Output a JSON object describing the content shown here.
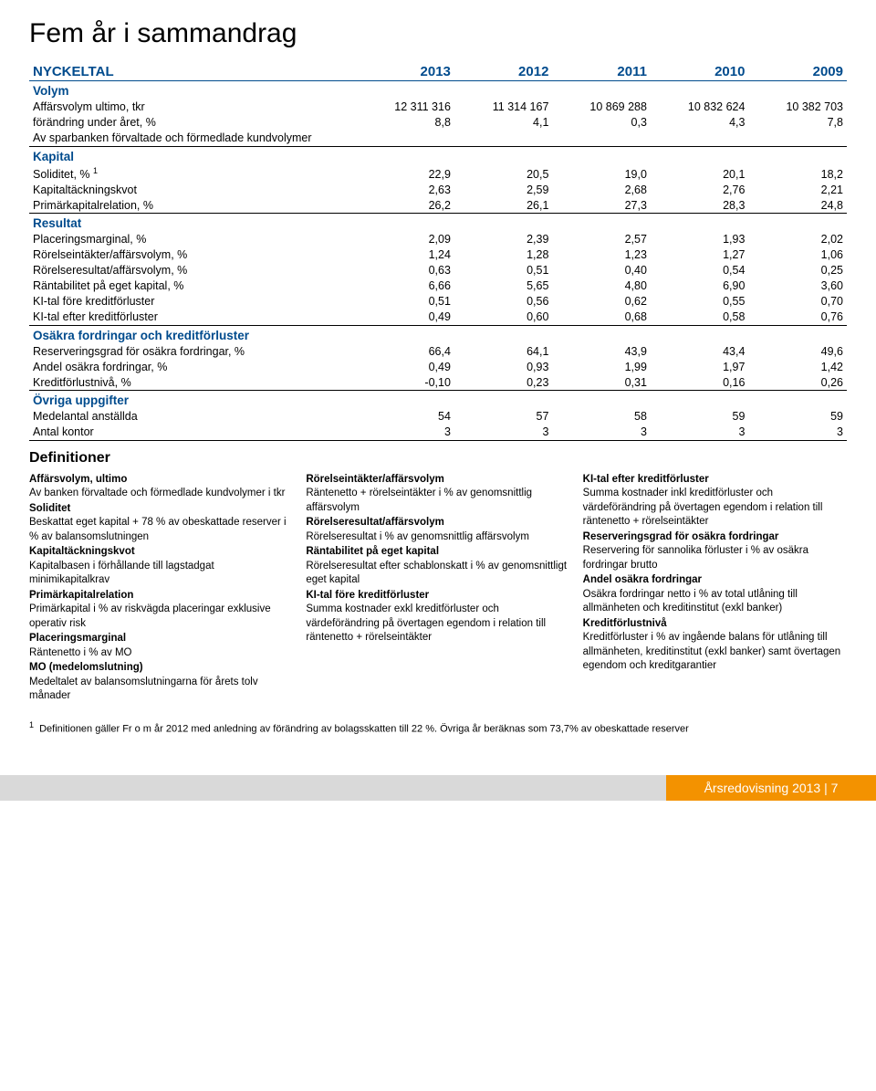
{
  "title": "Fem år i sammandrag",
  "years_header_label": "NYCKELTAL",
  "years": [
    "2013",
    "2012",
    "2011",
    "2010",
    "2009"
  ],
  "colors": {
    "heading_blue": "#004b8d",
    "footer_grey": "#d9d9d9",
    "footer_orange": "#f39200",
    "text": "#000000",
    "background": "#ffffff"
  },
  "sections": [
    {
      "heading": "Volym",
      "top_border": false,
      "rows": [
        {
          "label": "Affärsvolym ultimo, tkr",
          "values": [
            "12 311 316",
            "11 314 167",
            "10 869 288",
            "10 832 624",
            "10 382 703"
          ]
        },
        {
          "label": "   förändring under året, %",
          "values": [
            "8,8",
            "4,1",
            "0,3",
            "4,3",
            "7,8"
          ]
        },
        {
          "label": "Av sparbanken förvaltade och förmedlade kundvolymer",
          "values": [
            "",
            "",
            "",
            "",
            ""
          ],
          "bordered": true
        }
      ]
    },
    {
      "heading": "Kapital",
      "top_border": false,
      "rows": [
        {
          "label": "Soliditet, % ",
          "sup": "1",
          "values": [
            "22,9",
            "20,5",
            "19,0",
            "20,1",
            "18,2"
          ]
        },
        {
          "label": "Kapitaltäckningskvot",
          "values": [
            "2,63",
            "2,59",
            "2,68",
            "2,76",
            "2,21"
          ]
        },
        {
          "label": "Primärkapitalrelation, %",
          "values": [
            "26,2",
            "26,1",
            "27,3",
            "28,3",
            "24,8"
          ],
          "bordered": true
        }
      ]
    },
    {
      "heading": "Resultat",
      "top_border": false,
      "rows": [
        {
          "label": "Placeringsmarginal, %",
          "values": [
            "2,09",
            "2,39",
            "2,57",
            "1,93",
            "2,02"
          ]
        },
        {
          "label": "Rörelseintäkter/affärsvolym, %",
          "values": [
            "1,24",
            "1,28",
            "1,23",
            "1,27",
            "1,06"
          ]
        },
        {
          "label": "Rörelseresultat/affärsvolym, %",
          "values": [
            "0,63",
            "0,51",
            "0,40",
            "0,54",
            "0,25"
          ]
        },
        {
          "label": "Räntabilitet på eget kapital, %",
          "values": [
            "6,66",
            "5,65",
            "4,80",
            "6,90",
            "3,60"
          ]
        },
        {
          "label": "KI-tal före kreditförluster",
          "values": [
            "0,51",
            "0,56",
            "0,62",
            "0,55",
            "0,70"
          ]
        },
        {
          "label": "KI-tal efter kreditförluster",
          "values": [
            "0,49",
            "0,60",
            "0,68",
            "0,58",
            "0,76"
          ],
          "bordered": true
        }
      ]
    },
    {
      "heading": "Osäkra fordringar och kreditförluster",
      "top_border": false,
      "rows": [
        {
          "label": "Reserveringsgrad för osäkra fordringar, %",
          "values": [
            "66,4",
            "64,1",
            "43,9",
            "43,4",
            "49,6"
          ]
        },
        {
          "label": "Andel osäkra fordringar, %",
          "values": [
            "0,49",
            "0,93",
            "1,99",
            "1,97",
            "1,42"
          ]
        },
        {
          "label": "Kreditförlustnivå, %",
          "values": [
            "-0,10",
            "0,23",
            "0,31",
            "0,16",
            "0,26"
          ],
          "bordered": true
        }
      ]
    },
    {
      "heading": "Övriga uppgifter",
      "top_border": false,
      "rows": [
        {
          "label": "Medelantal anställda",
          "values": [
            "54",
            "57",
            "58",
            "59",
            "59"
          ]
        },
        {
          "label": "Antal kontor",
          "values": [
            "3",
            "3",
            "3",
            "3",
            "3"
          ],
          "bordered": true
        }
      ]
    }
  ],
  "definitions_title": "Definitioner",
  "definitions_columns": [
    [
      {
        "term": "Affärsvolym, ultimo",
        "desc": "Av banken förvaltade och förmedlade kundvolymer i tkr"
      },
      {
        "term": "Soliditet",
        "desc": "Beskattat eget kapital + 78 % av obeskattade reserver i % av balansomslutningen"
      },
      {
        "term": "Kapitaltäckningskvot",
        "desc": "Kapitalbasen i förhållande till lagstadgat minimikapitalkrav"
      },
      {
        "term": "Primärkapitalrelation",
        "desc": "Primärkapital i % av riskvägda placeringar exklusive operativ risk"
      },
      {
        "term": "Placeringsmarginal",
        "desc": "Räntenetto i % av MO"
      },
      {
        "term": "MO (medelomslutning)",
        "desc": "Medeltalet av balansomslutningarna för årets tolv månader"
      }
    ],
    [
      {
        "term": "Rörelseintäkter/affärsvolym",
        "desc": "Räntenetto + rörelseintäkter i % av genomsnittlig affärsvolym"
      },
      {
        "term": "Rörelseresultat/affärsvolym",
        "desc": "Rörelseresultat i % av genomsnittlig affärsvolym"
      },
      {
        "term": "Räntabilitet på eget kapital",
        "desc": "Rörelseresultat efter schablonskatt i % av genomsnittligt eget kapital"
      },
      {
        "term": "KI-tal före kreditförluster",
        "desc": "Summa kostnader exkl kreditförluster och värdeförändring på övertagen egendom i relation till räntenetto + rörelseintäkter"
      }
    ],
    [
      {
        "term": "KI-tal efter kreditförluster",
        "desc": "Summa kostnader inkl kreditförluster och värdeförändring på övertagen egendom i relation till räntenetto + rörelseintäkter"
      },
      {
        "term": "Reserveringsgrad för osäkra fordringar",
        "desc": "Reservering för sannolika förluster i % av osäkra fordringar brutto"
      },
      {
        "term": "Andel osäkra fordringar",
        "desc": "Osäkra fordringar netto i % av total utlåning till allmänheten och kreditinstitut (exkl banker)"
      },
      {
        "term": "Kreditförlustnivå",
        "desc": "Kreditförluster i % av ingående balans för utlåning till allmänheten, kreditinstitut (exkl banker) samt övertagen egendom och kreditgarantier"
      }
    ]
  ],
  "footnote_marker": "1",
  "footnote_text": "Definitionen gäller Fr o m år 2012 med anledning av förändring av bolagsskatten till 22 %. Övriga år beräknas som 73,7% av obeskattade reserver",
  "footer_text": "Årsredovisning 2013 | 7"
}
